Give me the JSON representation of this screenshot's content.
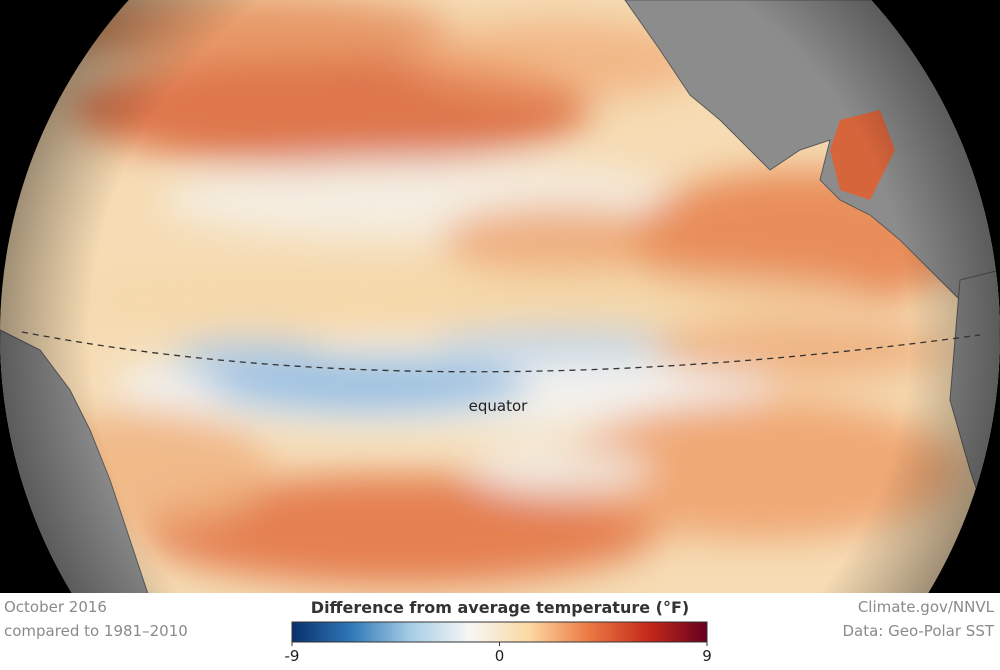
{
  "map": {
    "date": "October 2016",
    "baseline": "compared to 1981–2010",
    "source": "Climate.gov/NNVL",
    "data_source": "Data: Geo-Polar SST",
    "equator_label": "equator"
  },
  "colorbar": {
    "title": "Difference from average temperature (°F)",
    "lim": [
      -9,
      9
    ],
    "ticks": [
      -9,
      0,
      9
    ],
    "colors": [
      "#08306b",
      "#2f78b7",
      "#a7cde6",
      "#f7f7f5",
      "#fbd8a2",
      "#ec7a45",
      "#c52a1a",
      "#67001f"
    ]
  }
}
